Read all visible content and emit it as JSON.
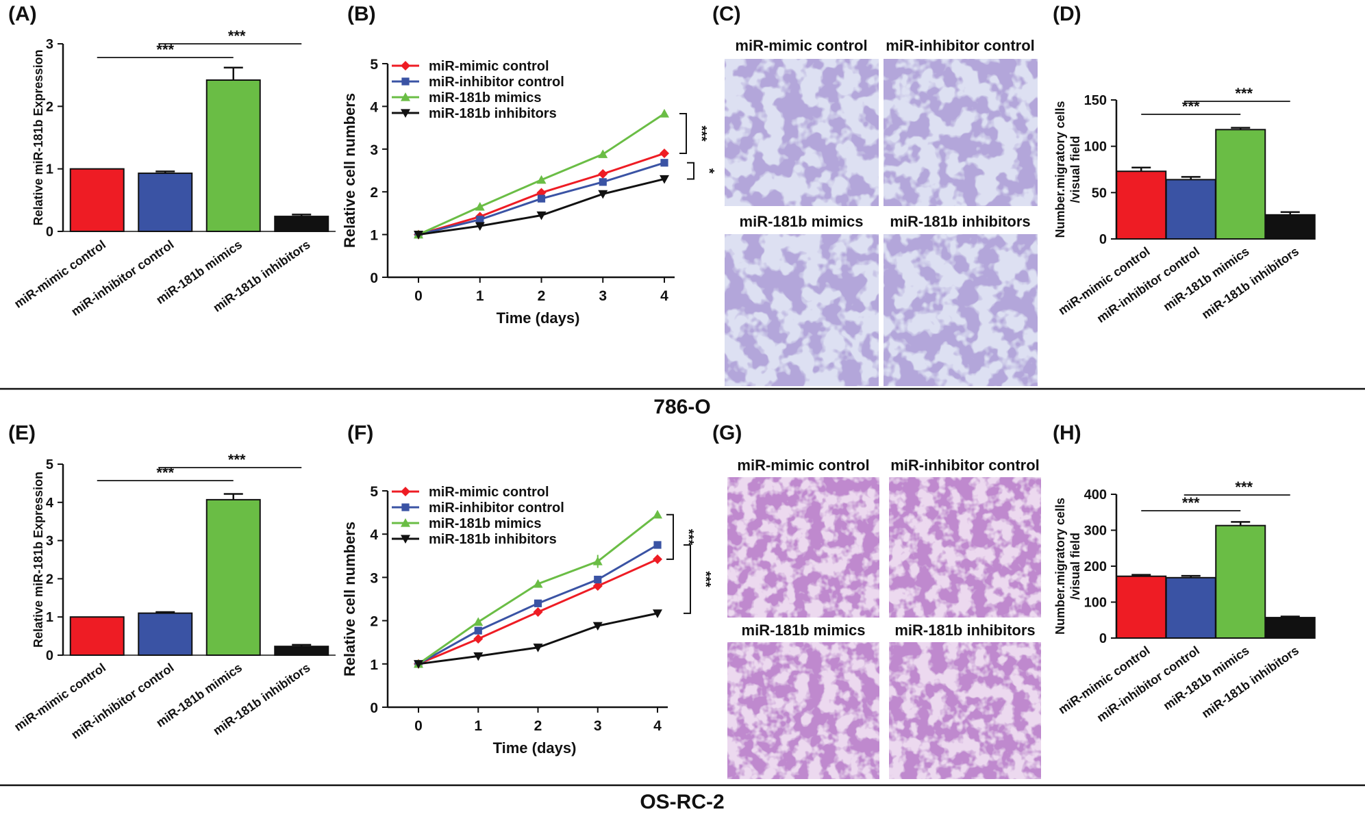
{
  "figure": {
    "row1_label": "786-O",
    "row2_label": "OS-RC-2",
    "panel_labels": [
      "(A)",
      "(B)",
      "(C)",
      "(D)",
      "(E)",
      "(F)",
      "(G)",
      "(H)"
    ]
  },
  "colors": {
    "red": "#ee1c24",
    "blue": "#3a53a4",
    "green": "#6abd45",
    "black": "#111111",
    "micro_row1": "#8a7fc0",
    "micro_row2": "#9b56b3"
  },
  "micrographs_row1": {
    "titles": [
      "miR-mimic control",
      "miR-inhibitor control",
      "miR-181b mimics",
      "miR-181b inhibitors"
    ]
  },
  "micrographs_row2": {
    "titles": [
      "miR-mimic control",
      "miR-inhibitor control",
      "miR-181b mimics",
      "miR-181b inhibitors"
    ]
  },
  "chart_data": [
    {
      "id": "A",
      "type": "bar",
      "title": "",
      "xlabel": "",
      "ylabel": "Relative miR-181b Expression",
      "categories": [
        "miR-mimic control",
        "miR-inhibitor control",
        "miR-181b mimics",
        "miR-181b inhibitors"
      ],
      "values": [
        1.0,
        0.93,
        2.42,
        0.24
      ],
      "errors": [
        0,
        0.03,
        0.2,
        0.03
      ],
      "ylim": [
        0,
        3
      ],
      "yticks": [
        "0",
        "1",
        "2",
        "3"
      ],
      "significance": [
        {
          "from": 0,
          "to": 2,
          "label": "***"
        },
        {
          "from": 1,
          "to": 3,
          "label": "***"
        }
      ]
    },
    {
      "id": "B",
      "type": "line",
      "xlabel": "Time (days)",
      "ylabel": "Relative cell numbers",
      "x": [
        0,
        1,
        2,
        3,
        4
      ],
      "xticks": [
        "0",
        "1",
        "2",
        "3",
        "4"
      ],
      "ylim": [
        0,
        5
      ],
      "yticks": [
        "0",
        "1",
        "2",
        "3",
        "4",
        "5"
      ],
      "series": [
        {
          "name": "miR-mimic control",
          "values": [
            1.0,
            1.42,
            1.98,
            2.42,
            2.9
          ],
          "errors": [
            0.03,
            0.05,
            0.05,
            0.05,
            0.05
          ],
          "marker": "diamond"
        },
        {
          "name": "miR-inhibitor control",
          "values": [
            1.0,
            1.35,
            1.84,
            2.23,
            2.68
          ],
          "errors": [
            0.03,
            0.05,
            0.05,
            0.06,
            0.06
          ],
          "marker": "square"
        },
        {
          "name": "miR-181b mimics",
          "values": [
            1.0,
            1.65,
            2.28,
            2.88,
            3.83
          ],
          "errors": [
            0.03,
            0.06,
            0.05,
            0.08,
            0.08
          ],
          "marker": "triangle"
        },
        {
          "name": "miR-181b inhibitors",
          "values": [
            1.0,
            1.2,
            1.45,
            1.95,
            2.3
          ],
          "errors": [
            0.03,
            0.03,
            0.04,
            0.04,
            0.05
          ],
          "marker": "triangle-down"
        }
      ],
      "significance": [
        {
          "from": 3.83,
          "to": 2.9,
          "label": "***"
        },
        {
          "from": 2.68,
          "to": 2.3,
          "label": "*"
        }
      ]
    },
    {
      "id": "D",
      "type": "bar",
      "xlabel": "",
      "ylabel": "Number.migratory cells /visual field",
      "categories": [
        "miR-mimic control",
        "miR-inhibitor control",
        "miR-181b mimics",
        "miR-181b inhibitors"
      ],
      "values": [
        73,
        64,
        118,
        26
      ],
      "errors": [
        4,
        3,
        2,
        3
      ],
      "ylim": [
        0,
        150
      ],
      "yticks": [
        "0",
        "50",
        "100",
        "150"
      ],
      "significance": [
        {
          "from": 0,
          "to": 2,
          "label": "***"
        },
        {
          "from": 1,
          "to": 3,
          "label": "***"
        }
      ]
    },
    {
      "id": "E",
      "type": "bar",
      "xlabel": "",
      "ylabel": "Relative miR-181b Expression",
      "categories": [
        "miR-mimic control",
        "miR-inhibitor control",
        "miR-181b mimics",
        "miR-181b inhibitors"
      ],
      "values": [
        1.0,
        1.1,
        4.07,
        0.23
      ],
      "errors": [
        0,
        0.03,
        0.15,
        0.04
      ],
      "ylim": [
        0,
        5
      ],
      "yticks": [
        "0",
        "1",
        "2",
        "3",
        "4",
        "5"
      ],
      "significance": [
        {
          "from": 0,
          "to": 2,
          "label": "***"
        },
        {
          "from": 1,
          "to": 3,
          "label": "***"
        }
      ]
    },
    {
      "id": "F",
      "type": "line",
      "xlabel": "Time (days)",
      "ylabel": "Relative cell numbers",
      "x": [
        0,
        1,
        2,
        3,
        4
      ],
      "xticks": [
        "0",
        "1",
        "2",
        "3",
        "4"
      ],
      "ylim": [
        0,
        5
      ],
      "yticks": [
        "0",
        "1",
        "2",
        "3",
        "4",
        "5"
      ],
      "series": [
        {
          "name": "miR-mimic control",
          "values": [
            1.0,
            1.58,
            2.2,
            2.8,
            3.42
          ],
          "errors": [
            0.03,
            0.05,
            0.05,
            0.06,
            0.1
          ],
          "marker": "diamond"
        },
        {
          "name": "miR-inhibitor control",
          "values": [
            1.0,
            1.77,
            2.4,
            2.95,
            3.75
          ],
          "errors": [
            0.03,
            0.05,
            0.05,
            0.06,
            0.06
          ],
          "marker": "square"
        },
        {
          "name": "miR-181b mimics",
          "values": [
            1.0,
            1.97,
            2.85,
            3.37,
            4.45
          ],
          "errors": [
            0.03,
            0.05,
            0.06,
            0.15,
            0.08
          ],
          "marker": "triangle"
        },
        {
          "name": "miR-181b inhibitors",
          "values": [
            1.0,
            1.18,
            1.38,
            1.88,
            2.17
          ],
          "errors": [
            0.03,
            0.03,
            0.03,
            0.04,
            0.04
          ],
          "marker": "triangle-down"
        }
      ],
      "significance": [
        {
          "from": 4.45,
          "to": 3.42,
          "label": "***"
        },
        {
          "from": 3.75,
          "to": 2.17,
          "label": "***"
        }
      ]
    },
    {
      "id": "H",
      "type": "bar",
      "xlabel": "",
      "ylabel": "Number.migratory cells /visual field",
      "categories": [
        "miR-mimic control",
        "miR-inhibitor control",
        "miR-181b mimics",
        "miR-181b inhibitors"
      ],
      "values": [
        172,
        168,
        313,
        57
      ],
      "errors": [
        4,
        5,
        10,
        3
      ],
      "ylim": [
        0,
        400
      ],
      "yticks": [
        "0",
        "100",
        "200",
        "300",
        "400"
      ],
      "significance": [
        {
          "from": 0,
          "to": 2,
          "label": "***"
        },
        {
          "from": 1,
          "to": 3,
          "label": "***"
        }
      ]
    }
  ]
}
